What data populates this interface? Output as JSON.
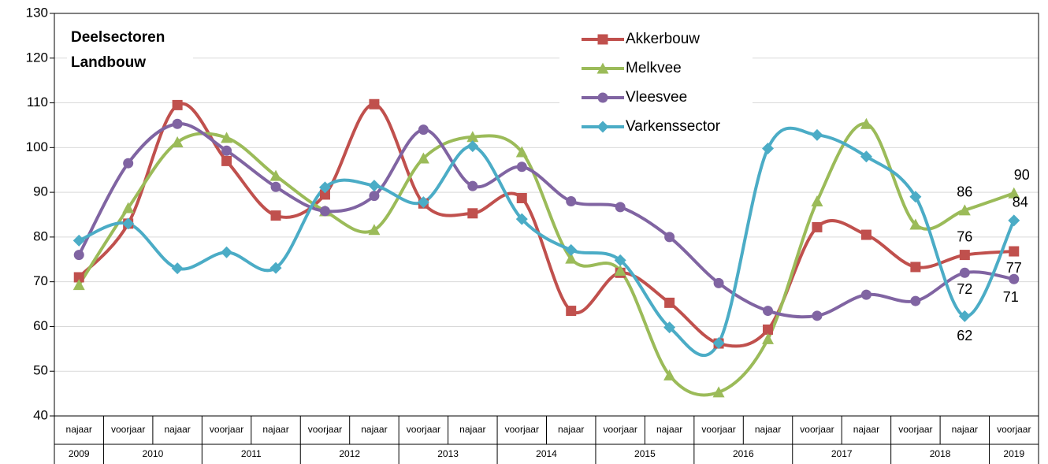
{
  "chart_data": {
    "type": "line",
    "title": [
      "Deelsectoren",
      "Landbouw"
    ],
    "categories": [
      "najaar",
      "voorjaar",
      "najaar",
      "voorjaar",
      "najaar",
      "voorjaar",
      "najaar",
      "voorjaar",
      "najaar",
      "voorjaar",
      "najaar",
      "voorjaar",
      "najaar",
      "voorjaar",
      "najaar",
      "voorjaar",
      "najaar",
      "voorjaar",
      "najaar",
      "voorjaar"
    ],
    "year_groups": [
      {
        "label": "2009",
        "count": 1
      },
      {
        "label": "2010",
        "count": 2
      },
      {
        "label": "2011",
        "count": 2
      },
      {
        "label": "2012",
        "count": 2
      },
      {
        "label": "2013",
        "count": 2
      },
      {
        "label": "2014",
        "count": 2
      },
      {
        "label": "2015",
        "count": 2
      },
      {
        "label": "2016",
        "count": 2
      },
      {
        "label": "2017",
        "count": 2
      },
      {
        "label": "2018",
        "count": 2
      },
      {
        "label": "2019",
        "count": 1
      }
    ],
    "series": [
      {
        "name": "Akkerbouw",
        "color": "#c0504d",
        "marker": "square",
        "values": [
          71,
          83,
          109.5,
          97,
          84.8,
          89.5,
          109.7,
          87.5,
          85.3,
          88.7,
          63.5,
          72,
          65.3,
          56.2,
          59.3,
          82.2,
          80.5,
          73.3,
          76,
          76.8
        ],
        "value_labels": [
          null,
          null,
          null,
          null,
          null,
          null,
          null,
          null,
          null,
          null,
          null,
          null,
          null,
          null,
          null,
          null,
          null,
          null,
          "76",
          "77"
        ]
      },
      {
        "name": "Melkvee",
        "color": "#9bbb59",
        "marker": "triangle",
        "values": [
          69.3,
          86.5,
          101.2,
          102.2,
          93.7,
          85.8,
          81.6,
          97.6,
          102.4,
          99,
          75.2,
          72.5,
          49.1,
          45.3,
          57.2,
          88,
          105.3,
          82.8,
          86,
          89.8
        ],
        "value_labels": [
          null,
          null,
          null,
          null,
          null,
          null,
          null,
          null,
          null,
          null,
          null,
          null,
          null,
          null,
          null,
          null,
          null,
          null,
          "86",
          "90"
        ]
      },
      {
        "name": "Vleesvee",
        "color": "#8064a2",
        "marker": "circle",
        "values": [
          76,
          96.5,
          105.3,
          99.3,
          91.2,
          85.8,
          89.2,
          104,
          91.4,
          95.7,
          88,
          86.7,
          80,
          69.7,
          63.5,
          62.4,
          67.1,
          65.7,
          72,
          70.6
        ],
        "value_labels": [
          null,
          null,
          null,
          null,
          null,
          null,
          null,
          null,
          null,
          null,
          null,
          null,
          null,
          null,
          null,
          null,
          null,
          null,
          "72",
          "71"
        ]
      },
      {
        "name": "Varkenssector",
        "color": "#4bacc6",
        "marker": "diamond",
        "values": [
          79.2,
          83,
          73,
          76.6,
          73.1,
          91.1,
          91.5,
          87.8,
          100.3,
          84,
          77.1,
          74.8,
          59.8,
          56.3,
          99.8,
          102.8,
          98,
          89,
          62.3,
          83.7
        ],
        "value_labels": [
          null,
          null,
          null,
          null,
          null,
          null,
          null,
          null,
          null,
          null,
          null,
          null,
          null,
          null,
          null,
          null,
          null,
          null,
          "62",
          "84"
        ]
      }
    ],
    "ylim": [
      40,
      130
    ],
    "yticks": [
      40,
      50,
      60,
      70,
      80,
      90,
      100,
      110,
      120,
      130
    ],
    "grid": true
  }
}
